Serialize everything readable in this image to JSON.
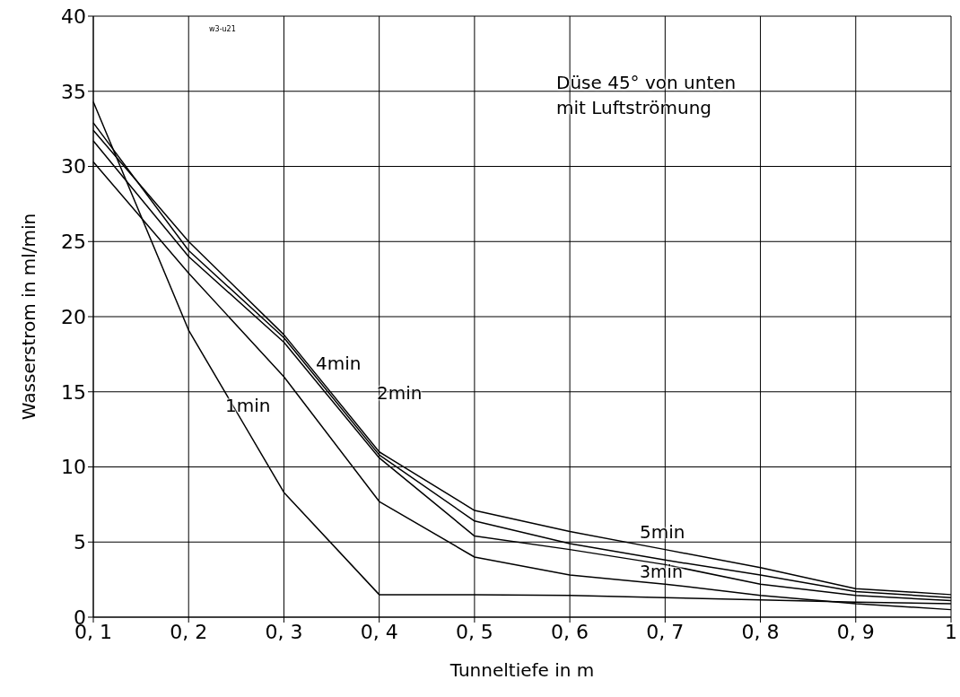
{
  "chart_data": {
    "type": "line",
    "xlabel": "Tunneltiefe in m",
    "ylabel": "Wasserstrom in ml/min",
    "categories": [
      "0, 1",
      "0, 2",
      "0, 3",
      "0, 4",
      "0, 5",
      "0, 6",
      "0, 7",
      "0, 8",
      "0, 9",
      "1"
    ],
    "series": [
      {
        "color": "#000000",
        "values": [
          34.3,
          19.1,
          8.3,
          1.5,
          1.5,
          1.45,
          1.3,
          1.15,
          1.0,
          0.9
        ]
      },
      {
        "color": "#000000",
        "values": [
          30.3,
          22.9,
          16.0,
          7.7,
          4.0,
          2.8,
          2.2,
          1.45,
          0.9,
          0.5
        ]
      },
      {
        "color": "#000000",
        "values": [
          31.7,
          24.0,
          18.3,
          10.6,
          5.4,
          4.5,
          3.5,
          2.2,
          1.45,
          1.1
        ]
      },
      {
        "color": "#000000",
        "values": [
          32.9,
          24.4,
          18.6,
          10.8,
          6.4,
          4.9,
          3.8,
          2.8,
          1.7,
          1.3
        ]
      },
      {
        "color": "#000000",
        "values": [
          32.4,
          25.0,
          18.8,
          11.0,
          7.1,
          5.7,
          4.5,
          3.3,
          1.9,
          1.5
        ]
      }
    ],
    "ylim": [
      0,
      40
    ],
    "yticks": [
      0,
      5,
      10,
      15,
      20,
      25,
      30,
      35,
      40
    ],
    "grid": true,
    "legend": false,
    "marker": "none",
    "line_style": "solid",
    "annotations": [
      "w3-u21",
      "Düse 45° von unten",
      "mit Luftströmung",
      "1min",
      "2min",
      "3min",
      "4min",
      "5min"
    ]
  }
}
